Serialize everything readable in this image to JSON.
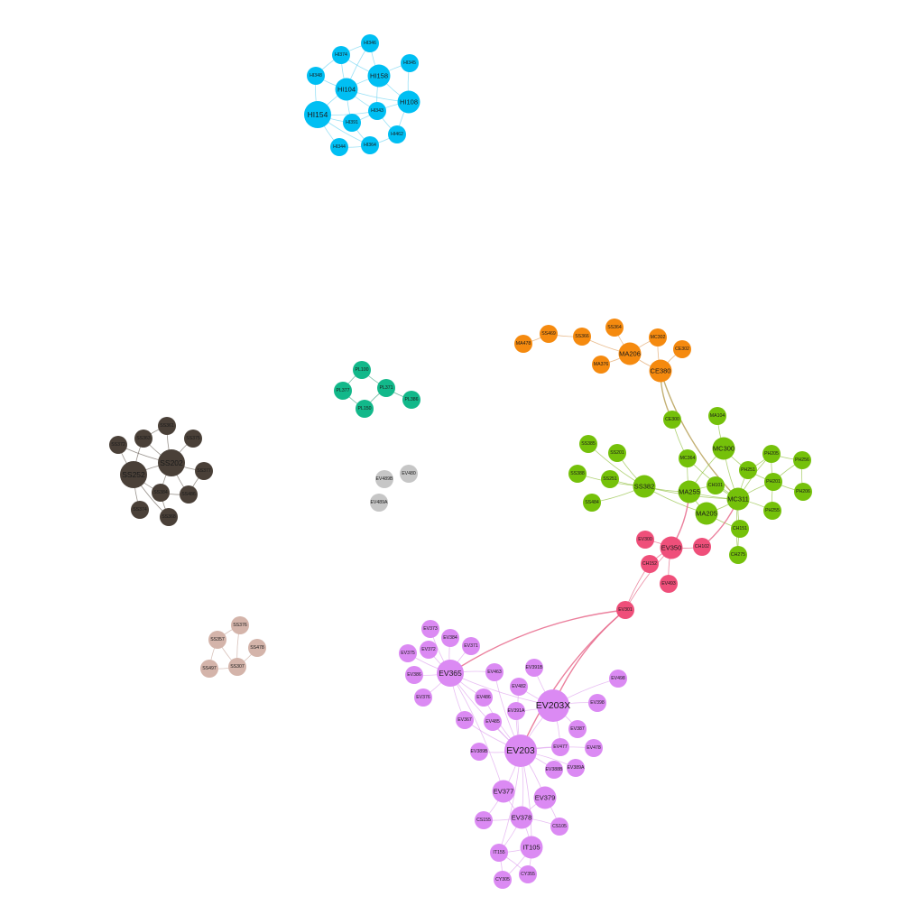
{
  "groups": {
    "HI": {
      "color": "#00bff3",
      "edge": "#6fd4f2"
    },
    "SS_dark": {
      "color": "#4a4038",
      "edge": "#6e655d"
    },
    "PL": {
      "color": "#12b88a",
      "edge": "#3aa07f"
    },
    "GRAY": {
      "color": "#c6c6c6",
      "edge": "#bdbdbd"
    },
    "SS_tan": {
      "color": "#d4b4aa",
      "edge": "#c9a9a0"
    },
    "ORANGE": {
      "color": "#f58a0f",
      "edge": "#e0a060"
    },
    "GREEN": {
      "color": "#75c10a",
      "edge": "#8fbf3a"
    },
    "RED": {
      "color": "#ef4f7a",
      "edge": "#e25a7c"
    },
    "PURPLE": {
      "color": "#db8af3",
      "edge": "#dea2ee"
    }
  },
  "nodes": [
    {
      "id": "HI346",
      "g": "HI"
    },
    {
      "id": "HI374",
      "g": "HI"
    },
    {
      "id": "HI158",
      "g": "HI",
      "big": 1
    },
    {
      "id": "HI348",
      "g": "HI"
    },
    {
      "id": "HI345",
      "g": "HI"
    },
    {
      "id": "HI104",
      "g": "HI",
      "big": 1
    },
    {
      "id": "HI108",
      "g": "HI",
      "big": 1
    },
    {
      "id": "HI343",
      "g": "HI"
    },
    {
      "id": "HI154",
      "g": "HI",
      "big": 2
    },
    {
      "id": "HI391",
      "g": "HI"
    },
    {
      "id": "HI462",
      "g": "HI"
    },
    {
      "id": "HI344",
      "g": "HI"
    },
    {
      "id": "HI364",
      "g": "HI"
    },
    {
      "id": "SS361",
      "g": "SS_dark"
    },
    {
      "id": "SS363",
      "g": "SS_dark"
    },
    {
      "id": "SS375",
      "g": "SS_dark"
    },
    {
      "id": "SS372",
      "g": "SS_dark"
    },
    {
      "id": "SS202",
      "g": "SS_dark",
      "big": 2
    },
    {
      "id": "SS252",
      "g": "SS_dark",
      "big": 2
    },
    {
      "id": "SS377",
      "g": "SS_dark"
    },
    {
      "id": "SS384",
      "g": "SS_dark"
    },
    {
      "id": "SS486",
      "g": "SS_dark"
    },
    {
      "id": "SS374",
      "g": "SS_dark"
    },
    {
      "id": "SS368",
      "g": "SS_dark"
    },
    {
      "id": "PL100",
      "g": "PL"
    },
    {
      "id": "PL377",
      "g": "PL"
    },
    {
      "id": "PL371",
      "g": "PL"
    },
    {
      "id": "PL386",
      "g": "PL"
    },
    {
      "id": "PL150",
      "g": "PL"
    },
    {
      "id": "EV489B",
      "g": "GRAY"
    },
    {
      "id": "EV480",
      "g": "GRAY"
    },
    {
      "id": "EV489A",
      "g": "GRAY"
    },
    {
      "id": "SS376",
      "g": "SS_tan"
    },
    {
      "id": "SS357",
      "g": "SS_tan"
    },
    {
      "id": "SS478",
      "g": "SS_tan"
    },
    {
      "id": "SS497",
      "g": "SS_tan"
    },
    {
      "id": "SS307",
      "g": "SS_tan"
    },
    {
      "id": "MA478",
      "g": "ORANGE"
    },
    {
      "id": "SS469",
      "g": "ORANGE"
    },
    {
      "id": "SS366",
      "g": "ORANGE"
    },
    {
      "id": "SS364",
      "g": "ORANGE"
    },
    {
      "id": "MC302",
      "g": "ORANGE"
    },
    {
      "id": "MA206",
      "g": "ORANGE",
      "big": 1
    },
    {
      "id": "CE302",
      "g": "ORANGE"
    },
    {
      "id": "MA376",
      "g": "ORANGE"
    },
    {
      "id": "CE380",
      "g": "ORANGE",
      "big": 1
    },
    {
      "id": "CE300",
      "g": "GREEN"
    },
    {
      "id": "MA104",
      "g": "GREEN"
    },
    {
      "id": "SS385",
      "g": "GREEN"
    },
    {
      "id": "SS201",
      "g": "GREEN"
    },
    {
      "id": "MC300",
      "g": "GREEN",
      "big": 1
    },
    {
      "id": "PH205",
      "g": "GREEN"
    },
    {
      "id": "PH256",
      "g": "GREEN"
    },
    {
      "id": "SS388",
      "g": "GREEN"
    },
    {
      "id": "SS251",
      "g": "GREEN"
    },
    {
      "id": "MC364",
      "g": "GREEN"
    },
    {
      "id": "PH251",
      "g": "GREEN"
    },
    {
      "id": "PH201",
      "g": "GREEN"
    },
    {
      "id": "SS382",
      "g": "GREEN",
      "big": 1
    },
    {
      "id": "CH101",
      "g": "GREEN"
    },
    {
      "id": "MA255",
      "g": "GREEN",
      "big": 1
    },
    {
      "id": "MC311",
      "g": "GREEN",
      "big": 1
    },
    {
      "id": "PH206",
      "g": "GREEN"
    },
    {
      "id": "SS484",
      "g": "GREEN"
    },
    {
      "id": "MA205",
      "g": "GREEN",
      "big": 1
    },
    {
      "id": "PH255",
      "g": "GREEN"
    },
    {
      "id": "CH151",
      "g": "GREEN"
    },
    {
      "id": "CH275",
      "g": "GREEN"
    },
    {
      "id": "EV300",
      "g": "RED"
    },
    {
      "id": "EV350",
      "g": "RED",
      "big": 1
    },
    {
      "id": "CH102",
      "g": "RED"
    },
    {
      "id": "CH152",
      "g": "RED"
    },
    {
      "id": "EV493",
      "g": "RED"
    },
    {
      "id": "EV301",
      "g": "RED"
    },
    {
      "id": "EV373",
      "g": "PURPLE"
    },
    {
      "id": "EV384",
      "g": "PURPLE"
    },
    {
      "id": "EV375",
      "g": "PURPLE"
    },
    {
      "id": "EV372",
      "g": "PURPLE"
    },
    {
      "id": "EV371",
      "g": "PURPLE"
    },
    {
      "id": "EV386",
      "g": "PURPLE"
    },
    {
      "id": "EV365",
      "g": "PURPLE",
      "big": 2
    },
    {
      "id": "EV463",
      "g": "PURPLE"
    },
    {
      "id": "EV391B",
      "g": "PURPLE"
    },
    {
      "id": "EV498",
      "g": "PURPLE"
    },
    {
      "id": "EV376",
      "g": "PURPLE"
    },
    {
      "id": "EV482",
      "g": "PURPLE"
    },
    {
      "id": "EV486",
      "g": "PURPLE"
    },
    {
      "id": "EV203X",
      "g": "PURPLE",
      "big": 3
    },
    {
      "id": "EV398",
      "g": "PURPLE"
    },
    {
      "id": "EV391A",
      "g": "PURPLE"
    },
    {
      "id": "EV367",
      "g": "PURPLE"
    },
    {
      "id": "EV485",
      "g": "PURPLE"
    },
    {
      "id": "EV387",
      "g": "PURPLE"
    },
    {
      "id": "EV389B",
      "g": "PURPLE"
    },
    {
      "id": "EV203",
      "g": "PURPLE",
      "big": 3
    },
    {
      "id": "EV477",
      "g": "PURPLE"
    },
    {
      "id": "EV478",
      "g": "PURPLE"
    },
    {
      "id": "EV388B",
      "g": "PURPLE"
    },
    {
      "id": "EV389A",
      "g": "PURPLE"
    },
    {
      "id": "EV377",
      "g": "PURPLE",
      "big": 1
    },
    {
      "id": "EV379",
      "g": "PURPLE",
      "big": 1
    },
    {
      "id": "CS155",
      "g": "PURPLE"
    },
    {
      "id": "EV378",
      "g": "PURPLE",
      "big": 1
    },
    {
      "id": "CS105",
      "g": "PURPLE"
    },
    {
      "id": "IT155",
      "g": "PURPLE"
    },
    {
      "id": "IT105",
      "g": "PURPLE",
      "big": 1
    },
    {
      "id": "CY305",
      "g": "PURPLE"
    },
    {
      "id": "CY355",
      "g": "PURPLE"
    }
  ],
  "edges": [
    [
      "HI346",
      "HI158"
    ],
    [
      "HI346",
      "HI374"
    ],
    [
      "HI346",
      "HI104"
    ],
    [
      "HI374",
      "HI104"
    ],
    [
      "HI374",
      "HI158"
    ],
    [
      "HI374",
      "HI348"
    ],
    [
      "HI348",
      "HI104"
    ],
    [
      "HI348",
      "HI154"
    ],
    [
      "HI345",
      "HI158"
    ],
    [
      "HI345",
      "HI108"
    ],
    [
      "HI158",
      "HI104"
    ],
    [
      "HI158",
      "HI343"
    ],
    [
      "HI158",
      "HI108"
    ],
    [
      "HI104",
      "HI154"
    ],
    [
      "HI104",
      "HI391"
    ],
    [
      "HI104",
      "HI343"
    ],
    [
      "HI108",
      "HI343"
    ],
    [
      "HI108",
      "HI462"
    ],
    [
      "HI154",
      "HI391"
    ],
    [
      "HI154",
      "HI344"
    ],
    [
      "HI391",
      "HI343"
    ],
    [
      "HI391",
      "HI364"
    ],
    [
      "HI343",
      "HI462"
    ],
    [
      "HI344",
      "HI364"
    ],
    [
      "HI364",
      "HI462"
    ],
    [
      "HI154",
      "HI343"
    ],
    [
      "HI104",
      "HI108"
    ],
    [
      "HI154",
      "HI364"
    ],
    [
      "SS361",
      "SS202"
    ],
    [
      "SS363",
      "SS202"
    ],
    [
      "SS363",
      "SS252"
    ],
    [
      "SS375",
      "SS202"
    ],
    [
      "SS372",
      "SS252"
    ],
    [
      "SS372",
      "SS202"
    ],
    [
      "SS202",
      "SS252"
    ],
    [
      "SS202",
      "SS377"
    ],
    [
      "SS202",
      "SS384"
    ],
    [
      "SS202",
      "SS486"
    ],
    [
      "SS252",
      "SS384"
    ],
    [
      "SS252",
      "SS374"
    ],
    [
      "SS252",
      "SS368"
    ],
    [
      "SS384",
      "SS368"
    ],
    [
      "SS384",
      "SS486"
    ],
    [
      "SS361",
      "SS363"
    ],
    [
      "SS377",
      "SS486"
    ],
    [
      "PL100",
      "PL377"
    ],
    [
      "PL100",
      "PL371"
    ],
    [
      "PL377",
      "PL150"
    ],
    [
      "PL371",
      "PL150"
    ],
    [
      "PL371",
      "PL386"
    ],
    [
      "SS376",
      "SS357"
    ],
    [
      "SS376",
      "SS307"
    ],
    [
      "SS357",
      "SS497"
    ],
    [
      "SS357",
      "SS307"
    ],
    [
      "SS307",
      "SS478"
    ],
    [
      "SS497",
      "SS307"
    ],
    [
      "MA478",
      "SS469"
    ],
    [
      "SS469",
      "SS366"
    ],
    [
      "SS366",
      "MA206"
    ],
    [
      "SS364",
      "MA206"
    ],
    [
      "MC302",
      "MA206"
    ],
    [
      "MC302",
      "CE380"
    ],
    [
      "CE302",
      "CE380"
    ],
    [
      "MA376",
      "MA206"
    ],
    [
      "MA206",
      "CE380"
    ],
    [
      "CE380",
      "CE300"
    ],
    [
      "CE380",
      "MC311"
    ],
    [
      "CE300",
      "MC364"
    ],
    [
      "MA104",
      "MC300"
    ],
    [
      "SS385",
      "SS382"
    ],
    [
      "SS201",
      "SS382"
    ],
    [
      "SS388",
      "SS382"
    ],
    [
      "SS251",
      "SS382"
    ],
    [
      "SS484",
      "SS382"
    ],
    [
      "SS382",
      "MA255"
    ],
    [
      "SS382",
      "MC311"
    ],
    [
      "MC364",
      "MA255"
    ],
    [
      "MC364",
      "MC311"
    ],
    [
      "MC300",
      "MC311"
    ],
    [
      "MC300",
      "PH251"
    ],
    [
      "MC300",
      "MA255"
    ],
    [
      "PH251",
      "PH205"
    ],
    [
      "PH251",
      "PH201"
    ],
    [
      "PH251",
      "MC311"
    ],
    [
      "PH205",
      "PH256"
    ],
    [
      "PH201",
      "PH206"
    ],
    [
      "PH201",
      "PH255"
    ],
    [
      "PH201",
      "MC311"
    ],
    [
      "PH256",
      "PH206"
    ],
    [
      "PH256",
      "PH201"
    ],
    [
      "PH205",
      "PH201"
    ],
    [
      "PH255",
      "MC311"
    ],
    [
      "CH101",
      "MC311"
    ],
    [
      "CH101",
      "MA255"
    ],
    [
      "MA255",
      "MC311"
    ],
    [
      "MA255",
      "MA205"
    ],
    [
      "MA205",
      "MC311"
    ],
    [
      "MC311",
      "CH151"
    ],
    [
      "CH151",
      "CH275"
    ],
    [
      "MC311",
      "CH275"
    ],
    [
      "MA205",
      "CH151"
    ],
    [
      "PH205",
      "MC311"
    ],
    [
      "SS382",
      "MA205"
    ],
    [
      "EV350",
      "MA255"
    ],
    [
      "EV350",
      "EV300"
    ],
    [
      "EV350",
      "CH102"
    ],
    [
      "EV350",
      "CH152"
    ],
    [
      "EV350",
      "EV493"
    ],
    [
      "CH102",
      "MC311"
    ],
    [
      "CH152",
      "EV301"
    ],
    [
      "EV350",
      "EV301"
    ],
    [
      "EV301",
      "EV203X"
    ],
    [
      "EV301",
      "EV203"
    ],
    [
      "EV301",
      "EV365"
    ],
    [
      "EV373",
      "EV365"
    ],
    [
      "EV384",
      "EV365"
    ],
    [
      "EV375",
      "EV365"
    ],
    [
      "EV372",
      "EV365"
    ],
    [
      "EV371",
      "EV365"
    ],
    [
      "EV386",
      "EV365"
    ],
    [
      "EV376",
      "EV365"
    ],
    [
      "EV463",
      "EV365"
    ],
    [
      "EV365",
      "EV486"
    ],
    [
      "EV365",
      "EV367"
    ],
    [
      "EV365",
      "EV203"
    ],
    [
      "EV365",
      "EV203X"
    ],
    [
      "EV482",
      "EV203X"
    ],
    [
      "EV391B",
      "EV203X"
    ],
    [
      "EV498",
      "EV203X"
    ],
    [
      "EV398",
      "EV203X"
    ],
    [
      "EV391A",
      "EV203X"
    ],
    [
      "EV387",
      "EV203X"
    ],
    [
      "EV203X",
      "EV203"
    ],
    [
      "EV486",
      "EV203"
    ],
    [
      "EV367",
      "EV203"
    ],
    [
      "EV485",
      "EV203"
    ],
    [
      "EV389B",
      "EV203"
    ],
    [
      "EV477",
      "EV203"
    ],
    [
      "EV478",
      "EV203"
    ],
    [
      "EV388B",
      "EV203"
    ],
    [
      "EV389A",
      "EV203"
    ],
    [
      "EV377",
      "EV203"
    ],
    [
      "EV379",
      "EV203"
    ],
    [
      "EV378",
      "EV203"
    ],
    [
      "CS155",
      "EV377"
    ],
    [
      "CS155",
      "EV378"
    ],
    [
      "EV377",
      "EV378"
    ],
    [
      "EV379",
      "EV378"
    ],
    [
      "CS105",
      "EV379"
    ],
    [
      "CS105",
      "EV378"
    ],
    [
      "IT155",
      "EV378"
    ],
    [
      "IT105",
      "EV378"
    ],
    [
      "IT155",
      "IT105"
    ],
    [
      "CY305",
      "IT155"
    ],
    [
      "CY355",
      "IT105"
    ],
    [
      "CY305",
      "IT105"
    ],
    [
      "CY355",
      "IT155"
    ],
    [
      "EV391A",
      "EV203"
    ],
    [
      "EV482",
      "EV203"
    ],
    [
      "EV463",
      "EV203"
    ],
    [
      "EV477",
      "EV203X"
    ],
    [
      "IT155",
      "EV203"
    ],
    [
      "IT105",
      "EV203"
    ],
    [
      "EV377",
      "EV365"
    ]
  ]
}
